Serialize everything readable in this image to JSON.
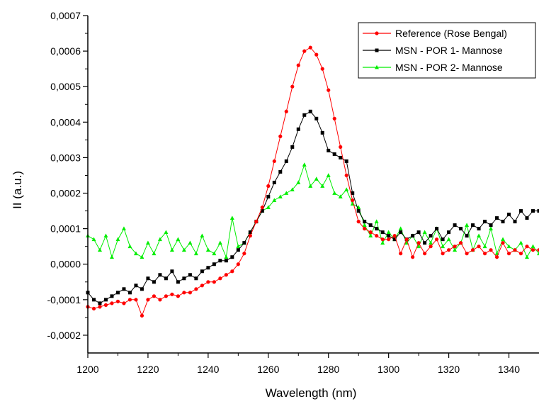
{
  "chart_data": {
    "type": "line",
    "xlabel": "Wavelength (nm)",
    "ylabel": "II (a.u.)",
    "xlim": [
      1200,
      1350
    ],
    "ylim": [
      -0.00025,
      0.0007
    ],
    "x_ticks": [
      1200,
      1220,
      1240,
      1260,
      1280,
      1300,
      1320,
      1340
    ],
    "y_ticks": [
      -0.0002,
      -0.0001,
      0.0,
      0.0001,
      0.0002,
      0.0003,
      0.0004,
      0.0005,
      0.0006,
      0.0007
    ],
    "x_tick_labels": [
      "1200",
      "1220",
      "1240",
      "1260",
      "1280",
      "1300",
      "1320",
      "1340"
    ],
    "y_tick_labels": [
      "-0,0002",
      "-0,0001",
      "0,0000",
      "0,0001",
      "0,0002",
      "0,0003",
      "0,0004",
      "0,0005",
      "0,0006",
      "0,0007"
    ],
    "legend_position": "top-right",
    "grid": false,
    "series": [
      {
        "name": "Reference (Rose Bengal)",
        "color": "#ff0000",
        "marker": "circle",
        "x": [
          1200,
          1202,
          1204,
          1206,
          1208,
          1210,
          1212,
          1214,
          1216,
          1218,
          1220,
          1222,
          1224,
          1226,
          1228,
          1230,
          1232,
          1234,
          1236,
          1238,
          1240,
          1242,
          1244,
          1246,
          1248,
          1250,
          1252,
          1254,
          1256,
          1258,
          1260,
          1262,
          1264,
          1266,
          1268,
          1270,
          1272,
          1274,
          1276,
          1278,
          1280,
          1282,
          1284,
          1286,
          1288,
          1290,
          1292,
          1294,
          1296,
          1298,
          1300,
          1302,
          1304,
          1306,
          1308,
          1310,
          1312,
          1314,
          1316,
          1318,
          1320,
          1322,
          1324,
          1326,
          1328,
          1330,
          1332,
          1334,
          1336,
          1338,
          1340,
          1342,
          1344,
          1346,
          1348,
          1350
        ],
        "y": [
          -0.00012,
          -0.000125,
          -0.00012,
          -0.000115,
          -0.00011,
          -0.000105,
          -0.00011,
          -0.0001,
          -0.0001,
          -0.000145,
          -0.0001,
          -9e-05,
          -0.0001,
          -9e-05,
          -8.5e-05,
          -9e-05,
          -8e-05,
          -8e-05,
          -7e-05,
          -6e-05,
          -5e-05,
          -5e-05,
          -4e-05,
          -3e-05,
          -2e-05,
          0.0,
          3e-05,
          8e-05,
          0.00012,
          0.00016,
          0.00022,
          0.00029,
          0.00036,
          0.00043,
          0.0005,
          0.00056,
          0.0006,
          0.00061,
          0.00059,
          0.00055,
          0.00049,
          0.00041,
          0.00033,
          0.00025,
          0.00018,
          0.00012,
          0.0001,
          9e-05,
          8e-05,
          7e-05,
          7e-05,
          8e-05,
          3e-05,
          7e-05,
          2e-05,
          6e-05,
          3e-05,
          5e-05,
          7e-05,
          3e-05,
          4e-05,
          5e-05,
          6e-05,
          3e-05,
          4e-05,
          5e-05,
          3e-05,
          4e-05,
          2e-05,
          6e-05,
          3e-05,
          4e-05,
          3e-05,
          5e-05,
          4e-05,
          4e-05
        ]
      },
      {
        "name": "MSN - POR 1- Mannose",
        "color": "#000000",
        "marker": "square",
        "x": [
          1200,
          1202,
          1204,
          1206,
          1208,
          1210,
          1212,
          1214,
          1216,
          1218,
          1220,
          1222,
          1224,
          1226,
          1228,
          1230,
          1232,
          1234,
          1236,
          1238,
          1240,
          1242,
          1244,
          1246,
          1248,
          1250,
          1252,
          1254,
          1256,
          1258,
          1260,
          1262,
          1264,
          1266,
          1268,
          1270,
          1272,
          1274,
          1276,
          1278,
          1280,
          1282,
          1284,
          1286,
          1288,
          1290,
          1292,
          1294,
          1296,
          1298,
          1300,
          1302,
          1304,
          1306,
          1308,
          1310,
          1312,
          1314,
          1316,
          1318,
          1320,
          1322,
          1324,
          1326,
          1328,
          1330,
          1332,
          1334,
          1336,
          1338,
          1340,
          1342,
          1344,
          1346,
          1348,
          1350
        ],
        "y": [
          -8e-05,
          -0.0001,
          -0.00011,
          -0.0001,
          -9e-05,
          -8e-05,
          -7e-05,
          -8e-05,
          -6e-05,
          -7e-05,
          -4e-05,
          -5e-05,
          -3e-05,
          -4e-05,
          -2e-05,
          -5e-05,
          -4e-05,
          -3e-05,
          -4e-05,
          -2e-05,
          -1e-05,
          0.0,
          1e-05,
          1e-05,
          2e-05,
          4e-05,
          6e-05,
          9e-05,
          0.00012,
          0.00015,
          0.00019,
          0.00023,
          0.00026,
          0.00029,
          0.00033,
          0.00038,
          0.00042,
          0.00043,
          0.00041,
          0.00037,
          0.00032,
          0.00031,
          0.0003,
          0.00029,
          0.0002,
          0.00015,
          0.00012,
          0.00011,
          0.0001,
          9e-05,
          8e-05,
          7e-05,
          9e-05,
          7e-05,
          8e-05,
          9e-05,
          6e-05,
          8e-05,
          0.0001,
          7e-05,
          9e-05,
          0.00011,
          0.0001,
          8e-05,
          0.00011,
          0.0001,
          0.00012,
          0.00011,
          0.00013,
          0.00012,
          0.00014,
          0.00012,
          0.00015,
          0.00013,
          0.00015,
          0.00015
        ]
      },
      {
        "name": "MSN - POR 2- Mannose",
        "color": "#00ee00",
        "marker": "triangle",
        "x": [
          1200,
          1202,
          1204,
          1206,
          1208,
          1210,
          1212,
          1214,
          1216,
          1218,
          1220,
          1222,
          1224,
          1226,
          1228,
          1230,
          1232,
          1234,
          1236,
          1238,
          1240,
          1242,
          1244,
          1246,
          1248,
          1250,
          1252,
          1254,
          1256,
          1258,
          1260,
          1262,
          1264,
          1266,
          1268,
          1270,
          1272,
          1274,
          1276,
          1278,
          1280,
          1282,
          1284,
          1286,
          1288,
          1290,
          1292,
          1294,
          1296,
          1298,
          1300,
          1302,
          1304,
          1306,
          1308,
          1310,
          1312,
          1314,
          1316,
          1318,
          1320,
          1322,
          1324,
          1326,
          1328,
          1330,
          1332,
          1334,
          1336,
          1338,
          1340,
          1342,
          1344,
          1346,
          1348,
          1350
        ],
        "y": [
          8e-05,
          7e-05,
          4e-05,
          8e-05,
          2e-05,
          7e-05,
          0.0001,
          5e-05,
          3e-05,
          2e-05,
          6e-05,
          3e-05,
          7e-05,
          9e-05,
          4e-05,
          7e-05,
          4e-05,
          6e-05,
          3e-05,
          8e-05,
          4e-05,
          3e-05,
          6e-05,
          2e-05,
          0.00013,
          5e-05,
          6e-05,
          9e-05,
          0.00012,
          0.00015,
          0.00016,
          0.00018,
          0.00019,
          0.0002,
          0.00021,
          0.00023,
          0.00028,
          0.00022,
          0.00024,
          0.00022,
          0.00025,
          0.0002,
          0.00019,
          0.00021,
          0.00017,
          0.00016,
          0.00011,
          8e-05,
          0.00012,
          6e-05,
          9e-05,
          7e-05,
          0.0001,
          6e-05,
          8e-05,
          5e-05,
          9e-05,
          6e-05,
          0.0001,
          5e-05,
          7e-05,
          4e-05,
          6e-05,
          0.00011,
          4e-05,
          8e-05,
          5e-05,
          0.0001,
          3e-05,
          7e-05,
          5e-05,
          4e-05,
          6e-05,
          2e-05,
          5e-05,
          3e-05
        ]
      }
    ]
  }
}
